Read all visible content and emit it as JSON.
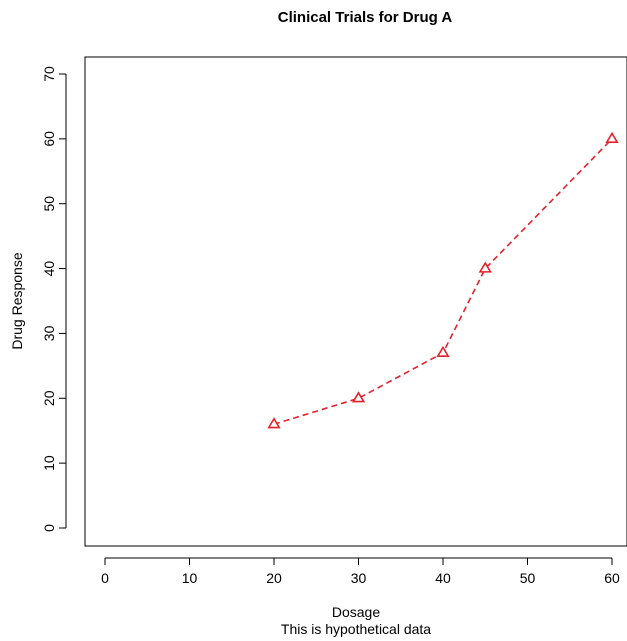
{
  "chart_data": {
    "type": "line",
    "title": "Clinical Trials for Drug A",
    "xlabel": "Dosage",
    "ylabel": "Drug Response",
    "subtitle": "This is hypothetical data",
    "xlim": [
      0,
      60
    ],
    "ylim": [
      0,
      70
    ],
    "xticks": [
      0,
      10,
      20,
      30,
      40,
      50,
      60
    ],
    "yticks": [
      0,
      10,
      20,
      30,
      40,
      50,
      60,
      70
    ],
    "grid": false,
    "series": [
      {
        "x": [
          20,
          30,
          40,
          45,
          60
        ],
        "y": [
          16,
          20,
          27,
          40,
          60
        ],
        "color": "#e8202a",
        "line_style": "dashed",
        "marker": "triangle"
      }
    ]
  }
}
